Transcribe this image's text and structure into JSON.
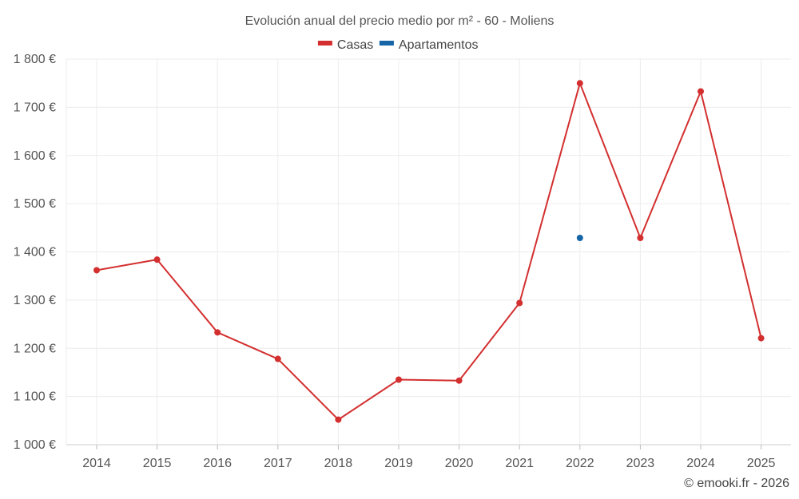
{
  "chart_data": {
    "type": "line",
    "title": "Evolución anual del precio medio por m² - 60 - Moliens",
    "categories": [
      "2014",
      "2015",
      "2016",
      "2017",
      "2018",
      "2019",
      "2020",
      "2021",
      "2022",
      "2023",
      "2024",
      "2025"
    ],
    "series": [
      {
        "name": "Casas",
        "color": "#d32f2f",
        "values": [
          1362,
          1384,
          1233,
          1178,
          1052,
          1135,
          1133,
          1294,
          1750,
          1429,
          1733,
          1221
        ]
      },
      {
        "name": "Apartamentos",
        "color": "#1565a7",
        "values": [
          null,
          null,
          null,
          null,
          null,
          null,
          null,
          null,
          1429,
          null,
          null,
          null
        ]
      }
    ],
    "yticks": [
      {
        "value": 1000,
        "label": "1 000 €"
      },
      {
        "value": 1100,
        "label": "1 100 €"
      },
      {
        "value": 1200,
        "label": "1 200 €"
      },
      {
        "value": 1300,
        "label": "1 300 €"
      },
      {
        "value": 1400,
        "label": "1 400 €"
      },
      {
        "value": 1500,
        "label": "1 500 €"
      },
      {
        "value": 1600,
        "label": "1 600 €"
      },
      {
        "value": 1700,
        "label": "1 700 €"
      },
      {
        "value": 1800,
        "label": "1 800 €"
      }
    ],
    "ylim": [
      1000,
      1800
    ],
    "xlabel": "",
    "ylabel": "",
    "grid": true,
    "legend_position": "top-center"
  },
  "credit": "© emooki.fr - 2026"
}
